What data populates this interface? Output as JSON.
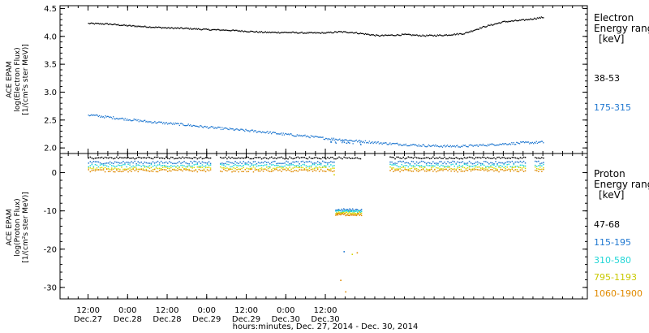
{
  "chart_data": [
    {
      "type": "scatter",
      "instrument": "ACE EPAM",
      "ylabel_line1": "ACE EPAM",
      "ylabel_line2": "log(Electron Flux)",
      "ylabel_line3": "[1/(cm²s ster MeV)]",
      "ylim": [
        1.9,
        4.55
      ],
      "yticks": [
        2.0,
        2.5,
        3.0,
        3.5,
        4.0,
        4.5
      ],
      "ytick_labels": [
        "2.0",
        "2.5",
        "3.0",
        "3.5",
        "4.0",
        "4.5"
      ],
      "legend_title_line1": "Electron",
      "legend_title_line2": "Energy range",
      "legend_title_line3": "[keV]",
      "series": [
        {
          "name": "38-53",
          "color": "#000000",
          "x_hours": [
            0,
            6,
            12,
            18,
            24,
            30,
            36,
            42,
            48,
            54,
            60,
            66,
            72,
            76,
            80,
            84,
            88,
            92,
            96,
            102,
            108,
            114,
            120,
            126,
            132,
            138
          ],
          "values": [
            4.24,
            4.23,
            4.2,
            4.18,
            4.16,
            4.15,
            4.13,
            4.12,
            4.1,
            4.08,
            4.08,
            4.07,
            4.07,
            4.09,
            4.08,
            4.05,
            4.02,
            4.03,
            4.04,
            4.02,
            4.03,
            4.06,
            4.18,
            4.27,
            4.3,
            4.35
          ]
        },
        {
          "name": "175-315",
          "color": "#1f77d0",
          "x_hours": [
            0,
            6,
            12,
            18,
            24,
            30,
            36,
            42,
            48,
            54,
            60,
            66,
            72,
            78,
            84,
            90,
            96,
            102,
            108,
            114,
            120,
            126,
            132,
            138
          ],
          "values": [
            2.6,
            2.56,
            2.52,
            2.48,
            2.45,
            2.42,
            2.38,
            2.35,
            2.32,
            2.29,
            2.25,
            2.22,
            2.18,
            2.15,
            2.12,
            2.09,
            2.07,
            2.05,
            2.04,
            2.04,
            2.06,
            2.08,
            2.1,
            2.11
          ]
        }
      ]
    },
    {
      "type": "scatter",
      "instrument": "ACE EPAM",
      "ylabel_line1": "ACE EPAM",
      "ylabel_line2": "log(Proton Flux)",
      "ylabel_line3": "[1/(cm²s ster MeV)]",
      "ylim": [
        -33,
        5
      ],
      "yticks": [
        0,
        -10,
        -20,
        -30
      ],
      "ytick_labels": [
        "0",
        "-10",
        "-20",
        "-30"
      ],
      "legend_title_line1": "Proton",
      "legend_title_line2": "Energy range",
      "legend_title_line3": "[keV]",
      "gaps_hours": [
        [
          37.5,
          39.5
        ],
        [
          83,
          91
        ],
        [
          133,
          135
        ]
      ],
      "series": [
        {
          "name": "47-68",
          "color": "#000000",
          "level": 4.0
        },
        {
          "name": "115-195",
          "color": "#1f77d0",
          "level": 2.8
        },
        {
          "name": "310-580",
          "color": "#22d6d6",
          "level": 2.0
        },
        {
          "name": "795-1193",
          "color": "#d6d600",
          "level": 1.3
        },
        {
          "name": "1060-1900",
          "color": "#e08a00",
          "level": 0.7
        }
      ],
      "anomaly": {
        "x_hours_range": [
          75,
          83
        ],
        "levels": [
          -9.6,
          -10.0,
          -10.4,
          -10.8
        ],
        "sparse_points": [
          {
            "x": 77.5,
            "y": -20.5,
            "color": "#1f77d0"
          },
          {
            "x": 80,
            "y": -21.2,
            "color": "#d6d600"
          },
          {
            "x": 81.5,
            "y": -20.8,
            "color": "#e08a00"
          },
          {
            "x": 76.5,
            "y": -28.0,
            "color": "#e08a00"
          },
          {
            "x": 78,
            "y": -31.0,
            "color": "#e08a00"
          },
          {
            "x": 74.5,
            "y": -0.4,
            "color": "#d6d600"
          },
          {
            "x": 75.5,
            "y": -10.5,
            "color": "#e08a00"
          }
        ]
      }
    }
  ],
  "x_axis": {
    "range_hours": [
      -8.5,
      151.5
    ],
    "ticks": [
      {
        "h": 0,
        "time": "12:00",
        "date": "Dec.27"
      },
      {
        "h": 12,
        "time": "0:00",
        "date": "Dec.28"
      },
      {
        "h": 24,
        "time": "12:00",
        "date": "Dec.28"
      },
      {
        "h": 36,
        "time": "0:00",
        "date": "Dec.29"
      },
      {
        "h": 48,
        "time": "12:00",
        "date": "Dec.29"
      },
      {
        "h": 60,
        "time": "0:00",
        "date": "Dec.30"
      },
      {
        "h": 72,
        "time": "12:00",
        "date": "Dec.30"
      }
    ],
    "minor_every_hours": 3,
    "xlabel": "hours:minutes, Dec. 27, 2014 - Dec. 30, 2014"
  }
}
